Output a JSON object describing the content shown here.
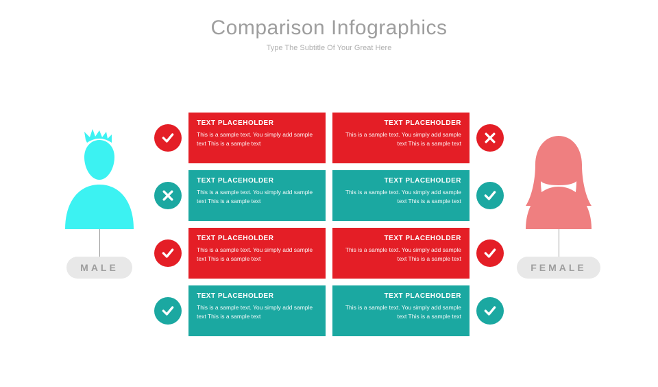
{
  "title": "Comparison Infographics",
  "subtitle": "Type The Subtitle Of Your Great Here",
  "colors": {
    "red": "#e41e26",
    "teal": "#1ba8a1",
    "cyan": "#3cf2f2",
    "coral": "#ef7f80",
    "title_gray": "#9e9e9e",
    "subtitle_gray": "#b0b0b0",
    "pill_bg": "#e8e8e8",
    "pill_text": "#9e9e9e",
    "white": "#ffffff"
  },
  "left_persona": {
    "label": "MALE"
  },
  "right_persona": {
    "label": "FEMALE"
  },
  "rows": [
    {
      "left_badge": {
        "icon": "check",
        "bg": "#e41e26"
      },
      "left_card": {
        "bg": "#e41e26",
        "title": "TEXT PLACEHOLDER",
        "body": "This is a sample text. You simply add sample text This is a sample text"
      },
      "right_card": {
        "bg": "#e41e26",
        "title": "TEXT PLACEHOLDER",
        "body": "This is a sample text. You simply add sample text This is a sample text"
      },
      "right_badge": {
        "icon": "cross",
        "bg": "#e41e26"
      }
    },
    {
      "left_badge": {
        "icon": "cross",
        "bg": "#1ba8a1"
      },
      "left_card": {
        "bg": "#1ba8a1",
        "title": "TEXT PLACEHOLDER",
        "body": "This is a sample text. You simply add sample text This is a sample text"
      },
      "right_card": {
        "bg": "#1ba8a1",
        "title": "TEXT PLACEHOLDER",
        "body": "This is a sample text. You simply add sample text This is a sample text"
      },
      "right_badge": {
        "icon": "check",
        "bg": "#1ba8a1"
      }
    },
    {
      "left_badge": {
        "icon": "check",
        "bg": "#e41e26"
      },
      "left_card": {
        "bg": "#e41e26",
        "title": "TEXT PLACEHOLDER",
        "body": "This is a sample text. You simply add sample text This is a sample text"
      },
      "right_card": {
        "bg": "#e41e26",
        "title": "TEXT PLACEHOLDER",
        "body": "This is a sample text. You simply add sample text This is a sample text"
      },
      "right_badge": {
        "icon": "check",
        "bg": "#e41e26"
      }
    },
    {
      "left_badge": {
        "icon": "check",
        "bg": "#1ba8a1"
      },
      "left_card": {
        "bg": "#1ba8a1",
        "title": "TEXT PLACEHOLDER",
        "body": "This is a sample text. You simply add sample text This is a sample text"
      },
      "right_card": {
        "bg": "#1ba8a1",
        "title": "TEXT PLACEHOLDER",
        "body": "This is a sample text. You simply add sample text This is a sample text"
      },
      "right_badge": {
        "icon": "check",
        "bg": "#1ba8a1"
      }
    }
  ]
}
